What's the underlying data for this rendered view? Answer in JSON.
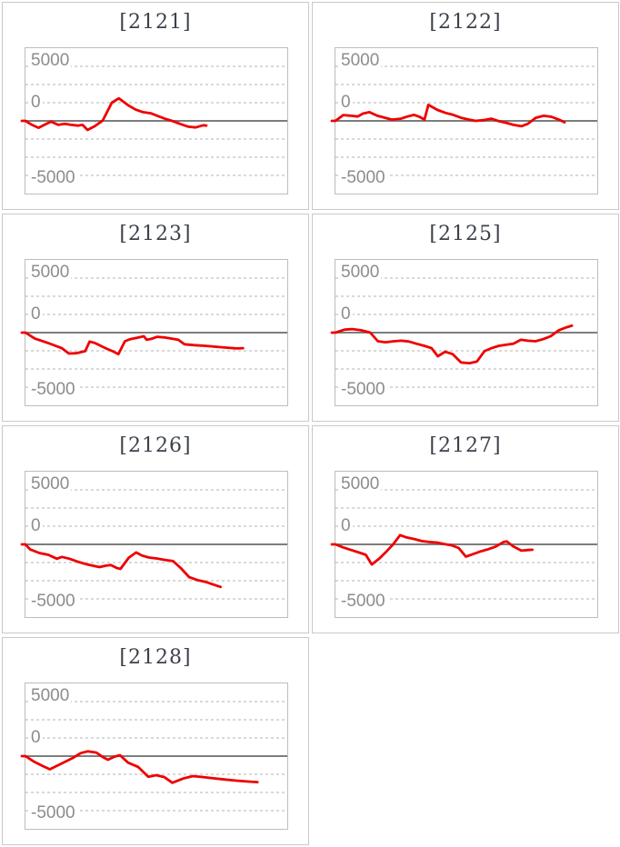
{
  "page": {
    "background": "#ffffff"
  },
  "styles": {
    "line_color": "#ee0000",
    "title_color": "#3c414b",
    "label_color": "#8c8c8e",
    "grid_color": "#d9d9d9",
    "zero_line_color": "#7d7d7d",
    "plot_border_color": "#bdbdbd",
    "panel_border_color": "#c9c9c9"
  },
  "chart_data": [
    {
      "type": "line",
      "title": "[2121]",
      "color": "#ee0000",
      "yticks": [
        "5000",
        "0",
        "-5000"
      ],
      "ylim": [
        -10000,
        10000
      ],
      "grid_interval": 2500,
      "legend": "none",
      "grid": "dashed",
      "zero_line": true,
      "points": [
        [
          0,
          0
        ],
        [
          0.025,
          -550
        ],
        [
          0.05,
          -950
        ],
        [
          0.075,
          -500
        ],
        [
          0.098,
          -100
        ],
        [
          0.125,
          -550
        ],
        [
          0.15,
          -400
        ],
        [
          0.175,
          -550
        ],
        [
          0.2,
          -650
        ],
        [
          0.218,
          -550
        ],
        [
          0.237,
          -1250
        ],
        [
          0.266,
          -700
        ],
        [
          0.295,
          50
        ],
        [
          0.33,
          2500
        ],
        [
          0.357,
          3100
        ],
        [
          0.392,
          2150
        ],
        [
          0.421,
          1550
        ],
        [
          0.449,
          1200
        ],
        [
          0.478,
          1050
        ],
        [
          0.507,
          650
        ],
        [
          0.536,
          250
        ],
        [
          0.564,
          -50
        ],
        [
          0.593,
          -450
        ],
        [
          0.622,
          -800
        ],
        [
          0.65,
          -900
        ],
        [
          0.679,
          -600
        ],
        [
          0.691,
          -650
        ]
      ]
    },
    {
      "type": "line",
      "title": "[2122]",
      "color": "#ee0000",
      "yticks": [
        "5000",
        "0",
        "-5000"
      ],
      "ylim": [
        -10000,
        10000
      ],
      "grid_interval": 2500,
      "legend": "none",
      "grid": "dashed",
      "zero_line": true,
      "points": [
        [
          0,
          0
        ],
        [
          0.03,
          800
        ],
        [
          0.06,
          700
        ],
        [
          0.085,
          600
        ],
        [
          0.105,
          1000
        ],
        [
          0.13,
          1200
        ],
        [
          0.16,
          700
        ],
        [
          0.19,
          420
        ],
        [
          0.215,
          180
        ],
        [
          0.25,
          300
        ],
        [
          0.275,
          600
        ],
        [
          0.3,
          820
        ],
        [
          0.32,
          580
        ],
        [
          0.34,
          180
        ],
        [
          0.355,
          2200
        ],
        [
          0.39,
          1500
        ],
        [
          0.42,
          1100
        ],
        [
          0.45,
          820
        ],
        [
          0.48,
          420
        ],
        [
          0.51,
          180
        ],
        [
          0.535,
          0
        ],
        [
          0.565,
          100
        ],
        [
          0.595,
          300
        ],
        [
          0.62,
          0
        ],
        [
          0.65,
          -250
        ],
        [
          0.68,
          -550
        ],
        [
          0.71,
          -740
        ],
        [
          0.735,
          -400
        ],
        [
          0.765,
          420
        ],
        [
          0.795,
          700
        ],
        [
          0.825,
          560
        ],
        [
          0.855,
          150
        ],
        [
          0.875,
          -200
        ]
      ]
    },
    {
      "type": "line",
      "title": "[2123]",
      "color": "#ee0000",
      "yticks": [
        "5000",
        "0",
        "-5000"
      ],
      "ylim": [
        -10000,
        10000
      ],
      "grid_interval": 2500,
      "legend": "none",
      "grid": "dashed",
      "zero_line": true,
      "points": [
        [
          0,
          0
        ],
        [
          0.036,
          -820
        ],
        [
          0.087,
          -1440
        ],
        [
          0.139,
          -2140
        ],
        [
          0.166,
          -2880
        ],
        [
          0.193,
          -2840
        ],
        [
          0.228,
          -2550
        ],
        [
          0.245,
          -1230
        ],
        [
          0.266,
          -1440
        ],
        [
          0.306,
          -2140
        ],
        [
          0.337,
          -2630
        ],
        [
          0.355,
          -2960
        ],
        [
          0.38,
          -1190
        ],
        [
          0.4,
          -905
        ],
        [
          0.427,
          -700
        ],
        [
          0.452,
          -500
        ],
        [
          0.463,
          -990
        ],
        [
          0.484,
          -825
        ],
        [
          0.503,
          -576
        ],
        [
          0.53,
          -660
        ],
        [
          0.559,
          -823
        ],
        [
          0.584,
          -988
        ],
        [
          0.607,
          -1605
        ],
        [
          0.645,
          -1728
        ],
        [
          0.685,
          -1810
        ],
        [
          0.725,
          -1934
        ],
        [
          0.766,
          -2057
        ],
        [
          0.806,
          -2180
        ],
        [
          0.831,
          -2140
        ]
      ]
    },
    {
      "type": "line",
      "title": "[2125]",
      "color": "#ee0000",
      "yticks": [
        "5000",
        "0",
        "-5000"
      ],
      "ylim": [
        -10000,
        10000
      ],
      "grid_interval": 2500,
      "legend": "none",
      "grid": "dashed",
      "zero_line": true,
      "points": [
        [
          0,
          0
        ],
        [
          0.035,
          410
        ],
        [
          0.064,
          490
        ],
        [
          0.098,
          330
        ],
        [
          0.133,
          0
        ],
        [
          0.162,
          -1190
        ],
        [
          0.191,
          -1320
        ],
        [
          0.223,
          -1190
        ],
        [
          0.251,
          -1110
        ],
        [
          0.281,
          -1230
        ],
        [
          0.309,
          -1520
        ],
        [
          0.339,
          -1810
        ],
        [
          0.367,
          -2140
        ],
        [
          0.391,
          -3250
        ],
        [
          0.419,
          -2630
        ],
        [
          0.448,
          -2960
        ],
        [
          0.48,
          -4110
        ],
        [
          0.512,
          -4200
        ],
        [
          0.54,
          -3990
        ],
        [
          0.569,
          -2550
        ],
        [
          0.596,
          -2140
        ],
        [
          0.625,
          -1810
        ],
        [
          0.654,
          -1650
        ],
        [
          0.679,
          -1520
        ],
        [
          0.708,
          -990
        ],
        [
          0.735,
          -1110
        ],
        [
          0.764,
          -1190
        ],
        [
          0.793,
          -905
        ],
        [
          0.822,
          -494
        ],
        [
          0.853,
          330
        ],
        [
          0.883,
          740
        ],
        [
          0.903,
          950
        ]
      ]
    },
    {
      "type": "line",
      "title": "[2126]",
      "color": "#ee0000",
      "yticks": [
        "5000",
        "0",
        "-5000"
      ],
      "ylim": [
        -10000,
        10000
      ],
      "grid_interval": 2500,
      "legend": "none",
      "grid": "dashed",
      "zero_line": true,
      "points": [
        [
          0,
          0
        ],
        [
          0.018,
          -700
        ],
        [
          0.053,
          -1190
        ],
        [
          0.087,
          -1440
        ],
        [
          0.12,
          -1975
        ],
        [
          0.139,
          -1730
        ],
        [
          0.168,
          -1975
        ],
        [
          0.2,
          -2390
        ],
        [
          0.231,
          -2715
        ],
        [
          0.262,
          -2960
        ],
        [
          0.283,
          -3130
        ],
        [
          0.308,
          -2920
        ],
        [
          0.326,
          -2840
        ],
        [
          0.349,
          -3250
        ],
        [
          0.363,
          -3375
        ],
        [
          0.395,
          -1810
        ],
        [
          0.423,
          -1110
        ],
        [
          0.444,
          -1520
        ],
        [
          0.472,
          -1810
        ],
        [
          0.501,
          -1935
        ],
        [
          0.533,
          -2140
        ],
        [
          0.564,
          -2305
        ],
        [
          0.593,
          -3250
        ],
        [
          0.625,
          -4500
        ],
        [
          0.656,
          -4900
        ],
        [
          0.687,
          -5150
        ],
        [
          0.72,
          -5550
        ],
        [
          0.745,
          -5850
        ]
      ]
    },
    {
      "type": "line",
      "title": "[2127]",
      "color": "#ee0000",
      "yticks": [
        "5000",
        "0",
        "-5000"
      ],
      "ylim": [
        -10000,
        10000
      ],
      "grid_interval": 2500,
      "legend": "none",
      "grid": "dashed",
      "zero_line": true,
      "points": [
        [
          0,
          0
        ],
        [
          0.029,
          -410
        ],
        [
          0.064,
          -825
        ],
        [
          0.096,
          -1190
        ],
        [
          0.116,
          -1440
        ],
        [
          0.139,
          -2760
        ],
        [
          0.168,
          -1935
        ],
        [
          0.197,
          -905
        ],
        [
          0.22,
          0
        ],
        [
          0.247,
          1275
        ],
        [
          0.272,
          945
        ],
        [
          0.301,
          740
        ],
        [
          0.33,
          455
        ],
        [
          0.359,
          330
        ],
        [
          0.388,
          245
        ],
        [
          0.417,
          40
        ],
        [
          0.443,
          -125
        ],
        [
          0.471,
          -494
        ],
        [
          0.498,
          -1690
        ],
        [
          0.527,
          -1320
        ],
        [
          0.556,
          -945
        ],
        [
          0.584,
          -660
        ],
        [
          0.613,
          -290
        ],
        [
          0.642,
          330
        ],
        [
          0.654,
          410
        ],
        [
          0.679,
          -290
        ],
        [
          0.71,
          -865
        ],
        [
          0.737,
          -780
        ],
        [
          0.752,
          -740
        ]
      ]
    },
    {
      "type": "line",
      "title": "[2128]",
      "color": "#ee0000",
      "yticks": [
        "5000",
        "0",
        "-5000"
      ],
      "ylim": [
        -10000,
        10000
      ],
      "grid_interval": 2500,
      "legend": "none",
      "grid": "dashed",
      "zero_line": true,
      "points": [
        [
          0,
          0
        ],
        [
          0.03,
          -700
        ],
        [
          0.064,
          -1320
        ],
        [
          0.093,
          -1810
        ],
        [
          0.133,
          -1110
        ],
        [
          0.179,
          -290
        ],
        [
          0.211,
          410
        ],
        [
          0.239,
          660
        ],
        [
          0.271,
          490
        ],
        [
          0.297,
          -165
        ],
        [
          0.315,
          -494
        ],
        [
          0.34,
          -80
        ],
        [
          0.361,
          125
        ],
        [
          0.392,
          -905
        ],
        [
          0.43,
          -1480
        ],
        [
          0.469,
          -2840
        ],
        [
          0.499,
          -2630
        ],
        [
          0.53,
          -2880
        ],
        [
          0.561,
          -3660
        ],
        [
          0.602,
          -3085
        ],
        [
          0.639,
          -2755
        ],
        [
          0.676,
          -2880
        ],
        [
          0.717,
          -3045
        ],
        [
          0.76,
          -3210
        ],
        [
          0.806,
          -3375
        ],
        [
          0.852,
          -3500
        ],
        [
          0.886,
          -3580
        ]
      ]
    }
  ]
}
